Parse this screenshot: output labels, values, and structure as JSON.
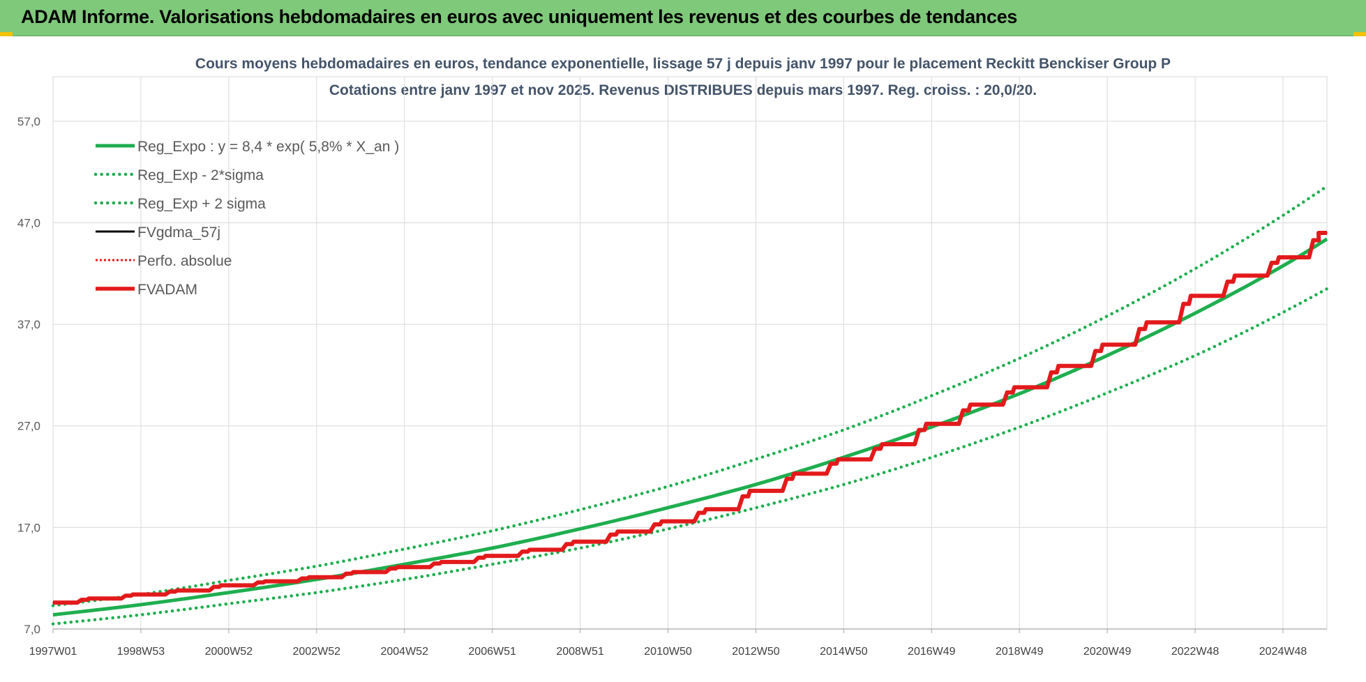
{
  "header": {
    "title": "ADAM Informe. Valorisations hebdomadaires en euros avec uniquement les revenus et des courbes de tendances"
  },
  "colors": {
    "header_bg": "#7fc97a",
    "trend": "#1fae4f",
    "fv_gdma": "#000000",
    "perfo": "#e31a1c",
    "fvadam": "#e31a1c",
    "title_text": "#44546a",
    "grid": "#d9d9d9"
  },
  "chart_data": {
    "type": "line",
    "title": "Cours moyens hebdomadaires en euros, tendance exponentielle, lissage 57 j depuis janv 1997 pour le placement Reckitt Benckiser Group P",
    "subtitle": "Cotations entre janv 1997 et nov 2025. Revenus DISTRIBUES depuis mars 1997. Reg. croiss. : 20,0/20.",
    "xlabel": "",
    "ylabel": "",
    "x_range": [
      "1997W01",
      "2025W47"
    ],
    "x_tick_labels": [
      "1997W01",
      "1998W53",
      "2000W52",
      "2002W52",
      "2004W52",
      "2006W51",
      "2008W51",
      "2010W50",
      "2012W50",
      "2014W50",
      "2016W49",
      "2018W49",
      "2020W49",
      "2022W48",
      "2024W48"
    ],
    "ylim": [
      7.0,
      58.5
    ],
    "y_ticks": [
      "7,0",
      "17,0",
      "27,0",
      "37,0",
      "47,0",
      "57,0"
    ],
    "grid": true,
    "legend_position": "top-left",
    "series": [
      {
        "name": "Reg_Expo : y = 8,4 * exp( 5,8% *  X_an )",
        "style": "solid-thick",
        "color": "#1fae4f",
        "x": [
          1997,
          1999,
          2001,
          2003,
          2005,
          2007,
          2009,
          2011,
          2013,
          2015,
          2017,
          2019,
          2021,
          2023,
          2025,
          2025.9
        ],
        "y": [
          8.4,
          9.4,
          10.6,
          11.9,
          13.4,
          15.0,
          16.9,
          19.0,
          21.3,
          24.0,
          27.0,
          30.3,
          34.1,
          38.3,
          43.0,
          45.4
        ]
      },
      {
        "name": "Reg_Exp - 2*sigma",
        "style": "dotted",
        "color": "#1fae4f",
        "x": [
          1997,
          1999,
          2001,
          2003,
          2005,
          2007,
          2009,
          2011,
          2013,
          2015,
          2017,
          2019,
          2021,
          2023,
          2025,
          2025.9
        ],
        "y": [
          7.5,
          8.4,
          9.5,
          10.6,
          11.9,
          13.4,
          15.0,
          16.9,
          19.0,
          21.3,
          24.0,
          27.0,
          30.4,
          34.1,
          38.4,
          40.5
        ]
      },
      {
        "name": "Reg_Exp + 2 sigma",
        "style": "dotted",
        "color": "#1fae4f",
        "x": [
          1997,
          1999,
          2001,
          2003,
          2005,
          2007,
          2009,
          2011,
          2013,
          2015,
          2017,
          2019,
          2021,
          2023,
          2025,
          2025.9
        ],
        "y": [
          9.3,
          10.4,
          11.8,
          13.2,
          14.9,
          16.7,
          18.8,
          21.1,
          23.8,
          26.7,
          30.1,
          33.8,
          38.0,
          42.7,
          48.0,
          50.6
        ]
      },
      {
        "name": "FVgdma_57j",
        "style": "solid",
        "color": "#000000",
        "x": [
          1997,
          1998,
          1999,
          2000,
          2001,
          2002,
          2003,
          2004,
          2005,
          2006,
          2007,
          2008,
          2009,
          2010,
          2011,
          2012,
          2013,
          2014,
          2015,
          2016,
          2017,
          2018,
          2019,
          2020,
          2021,
          2022,
          2023,
          2024,
          2025,
          2025.9
        ],
        "y": [
          9.6,
          10.0,
          10.4,
          10.8,
          11.3,
          11.7,
          12.1,
          12.6,
          13.1,
          13.6,
          14.2,
          14.8,
          15.6,
          16.6,
          17.6,
          18.8,
          20.6,
          22.3,
          23.7,
          25.2,
          27.2,
          29.1,
          30.8,
          32.9,
          35.0,
          37.2,
          39.8,
          41.8,
          43.6,
          46.0
        ]
      },
      {
        "name": "Perfo. absolue",
        "style": "dotted",
        "color": "#e31a1c",
        "x": [
          1997,
          1998,
          1999,
          2000,
          2001,
          2002,
          2003,
          2004,
          2005,
          2006,
          2007,
          2008,
          2009,
          2010,
          2011,
          2012,
          2013,
          2014,
          2015,
          2016,
          2017,
          2018,
          2019,
          2020,
          2021,
          2022,
          2023,
          2024,
          2025,
          2025.9
        ],
        "y": [
          9.6,
          10.0,
          10.4,
          10.8,
          11.3,
          11.7,
          12.1,
          12.6,
          13.1,
          13.6,
          14.2,
          14.8,
          15.6,
          16.6,
          17.6,
          18.8,
          20.6,
          22.3,
          23.7,
          25.2,
          27.2,
          29.1,
          30.8,
          32.9,
          35.0,
          37.2,
          39.8,
          41.8,
          43.6,
          46.0
        ]
      },
      {
        "name": "FVADAM",
        "style": "step-thick",
        "color": "#e31a1c",
        "x": [
          1997,
          1998,
          1999,
          2000,
          2001,
          2002,
          2003,
          2004,
          2005,
          2006,
          2007,
          2008,
          2009,
          2010,
          2011,
          2012,
          2013,
          2014,
          2015,
          2016,
          2017,
          2018,
          2019,
          2020,
          2021,
          2022,
          2023,
          2024,
          2025,
          2025.9
        ],
        "y": [
          9.6,
          10.0,
          10.4,
          10.8,
          11.3,
          11.7,
          12.1,
          12.6,
          13.1,
          13.6,
          14.2,
          14.8,
          15.6,
          16.6,
          17.6,
          18.8,
          20.6,
          22.3,
          23.7,
          25.2,
          27.2,
          29.1,
          30.8,
          32.9,
          35.0,
          37.2,
          39.8,
          41.8,
          43.6,
          46.0
        ]
      }
    ]
  }
}
